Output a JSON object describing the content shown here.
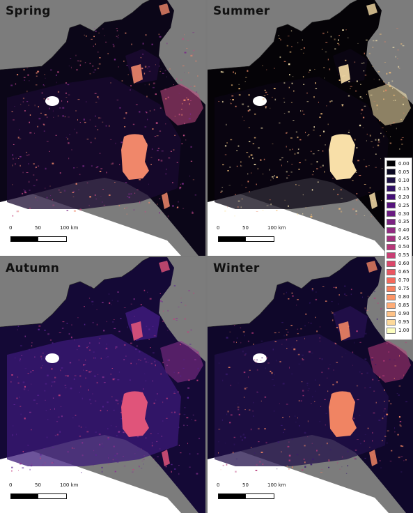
{
  "panels": [
    {
      "title": "Spring",
      "base": "#0b0618",
      "blotch": "#f0876a",
      "scatter": [
        "#7a2a85",
        "#c24b82",
        "#f0876a"
      ],
      "tint": "#1a0a30"
    },
    {
      "title": "Summer",
      "base": "#050307",
      "blotch": "#f8dfa8",
      "scatter": [
        "#f5c07a",
        "#fde9b0",
        "#e88565"
      ],
      "tint": "#0b0614"
    },
    {
      "title": "Autumn",
      "base": "#140936",
      "blotch": "#e0547a",
      "scatter": [
        "#5a2391",
        "#8a3190",
        "#c53e7e"
      ],
      "tint": "#3b1a78"
    },
    {
      "title": "Winter",
      "base": "#0f072a",
      "blotch": "#f08463",
      "scatter": [
        "#3a1a6e",
        "#b63a78",
        "#f08463"
      ],
      "tint": "#22104a"
    }
  ],
  "scalebar": {
    "labels": [
      "0",
      "50",
      "100 km"
    ]
  },
  "legend": {
    "colors": [
      "#000004",
      "#0a0822",
      "#1c1044",
      "#2f1163",
      "#440f76",
      "#56147d",
      "#6a1c81",
      "#7c2382",
      "#912b81",
      "#a3307e",
      "#b73779",
      "#c83e73",
      "#db476a",
      "#ea5661",
      "#f4695c",
      "#f87f5e",
      "#fc9566",
      "#feac76",
      "#fec287",
      "#fdd99a",
      "#fcfdbf"
    ],
    "values": [
      "0.00",
      "0.05",
      "0.10",
      "0.15",
      "0.20",
      "0.25",
      "0.30",
      "0.35",
      "0.40",
      "0.45",
      "0.50",
      "0.55",
      "0.60",
      "0.65",
      "0.70",
      "0.75",
      "0.80",
      "0.85",
      "0.90",
      "0.95",
      "1.00"
    ]
  }
}
